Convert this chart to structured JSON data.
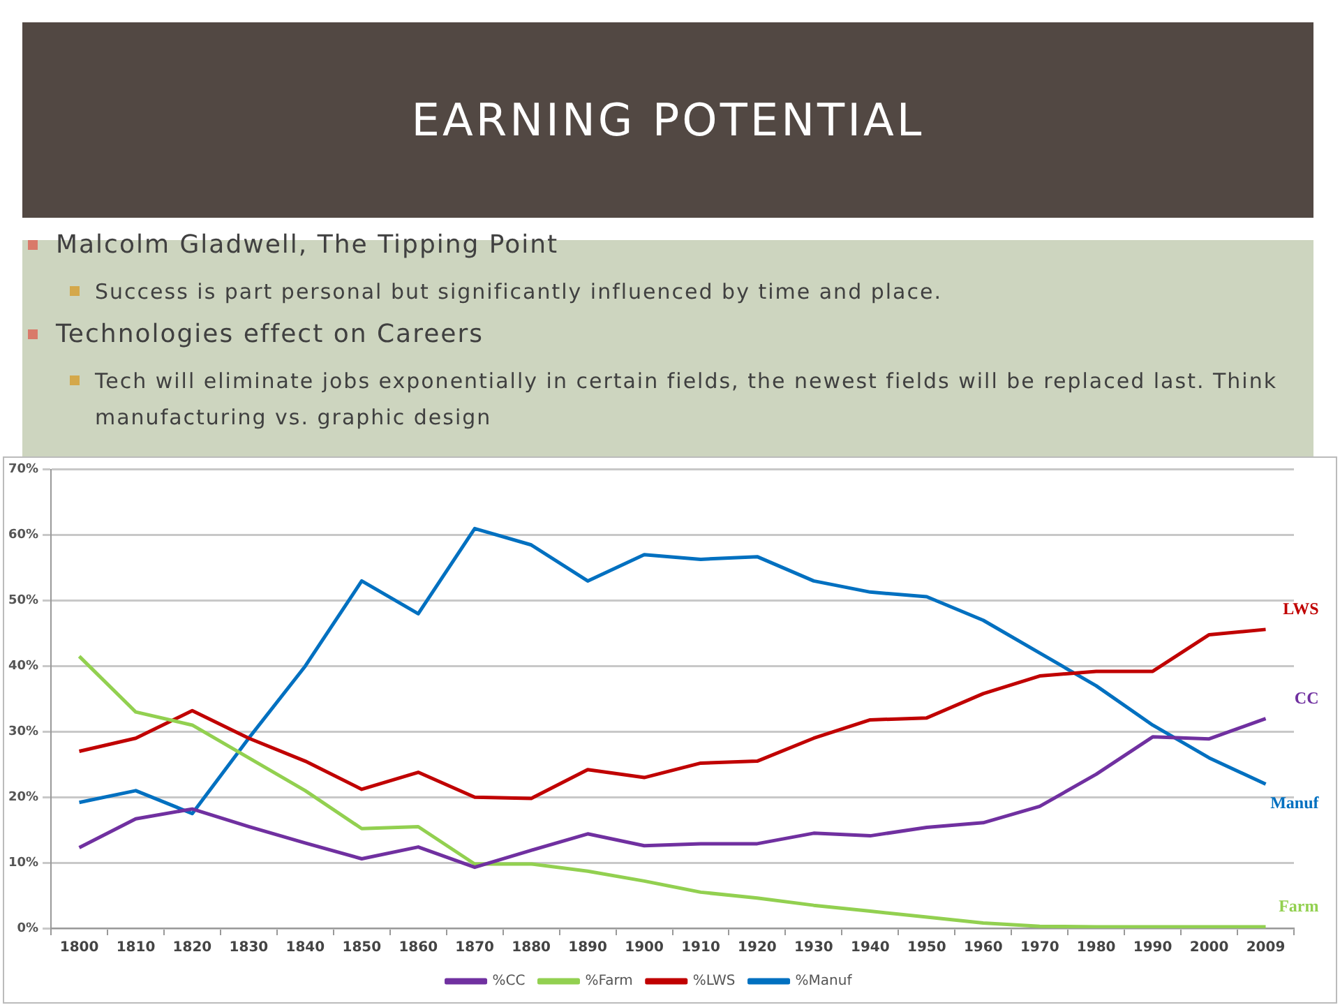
{
  "chart_data": {
    "type": "line",
    "title": "EARNING POTENTIAL",
    "categories": [
      "1800",
      "1810",
      "1820",
      "1830",
      "1840",
      "1850",
      "1860",
      "1870",
      "1880",
      "1890",
      "1900",
      "1910",
      "1920",
      "1930",
      "1940",
      "1950",
      "1960",
      "1970",
      "1980",
      "1990",
      "2000",
      "2009"
    ],
    "series": [
      {
        "name": "%CC",
        "color": "#7030a0",
        "values": [
          12.3,
          16.7,
          18.2,
          15.5,
          13,
          10.6,
          12.4,
          9.3,
          11.9,
          14.4,
          12.6,
          12.9,
          12.9,
          14.5,
          14.1,
          15.4,
          16.1,
          18.6,
          23.5,
          29.2,
          28.9,
          32
        ]
      },
      {
        "name": "%Farm",
        "color": "#92d050",
        "values": [
          41.5,
          33,
          31,
          26,
          21,
          15.2,
          15.5,
          9.8,
          9.8,
          8.7,
          7.2,
          5.5,
          4.6,
          3.5,
          2.6,
          1.7,
          0.8,
          0.3,
          0.2,
          0.2,
          0.2,
          0.2
        ]
      },
      {
        "name": "%LWS",
        "color": "#c00000",
        "values": [
          27,
          29,
          33.2,
          29,
          25.5,
          21.2,
          23.8,
          20,
          19.8,
          24.2,
          23,
          25.2,
          25.5,
          29,
          31.8,
          32.1,
          35.8,
          38.5,
          39.2,
          39.2,
          44.8,
          45.6
        ]
      },
      {
        "name": "%Manuf",
        "color": "#0070c0",
        "values": [
          19.2,
          21,
          17.5,
          29,
          40,
          53,
          48,
          61,
          58.5,
          53,
          57,
          56.3,
          56.7,
          53,
          51.3,
          50.6,
          47,
          42,
          37,
          31,
          26,
          22
        ]
      }
    ],
    "ylim": [
      0,
      70
    ],
    "yticks": [
      {
        "value": 0,
        "label": "0%"
      },
      {
        "value": 10,
        "label": "10%"
      },
      {
        "value": 20,
        "label": "20%"
      },
      {
        "value": 30,
        "label": "30%"
      },
      {
        "value": 40,
        "label": "40%"
      },
      {
        "value": 50,
        "label": "50%"
      },
      {
        "value": 60,
        "label": "60%"
      },
      {
        "value": 70,
        "label": "70%"
      }
    ],
    "grid": "y",
    "legend": "bottom",
    "marker": "none",
    "line_style": "solid",
    "annotations": [
      "Malcolm Gladwell, The Tipping Point",
      "Success is part personal but significantly influenced by time and place.",
      "Technologies effect on Careers",
      "Tech will eliminate jobs exponentially in certain fields, the newest fields will be replaced last. Think manufacturing vs. graphic design",
      {
        "text": "LWS",
        "x": "2009",
        "y": 45.6
      },
      {
        "text": "CC",
        "x": "2009",
        "y": 32
      },
      {
        "text": "Manuf",
        "x": "2009",
        "y": 22
      },
      {
        "text": "Farm",
        "x": "2009",
        "y": 0.2
      }
    ]
  }
}
